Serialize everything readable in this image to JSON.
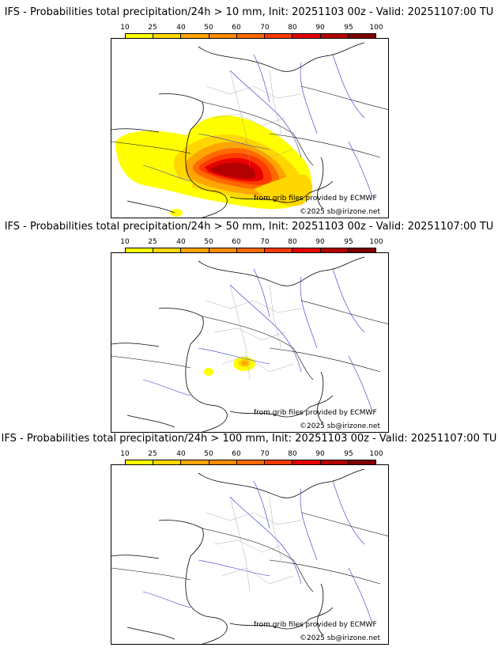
{
  "legend": {
    "ticks": [
      "10",
      "25",
      "40",
      "50",
      "60",
      "70",
      "80",
      "90",
      "95",
      "100"
    ],
    "colors": [
      "#ffff00",
      "#ffd700",
      "#ffa500",
      "#ff8c00",
      "#ff6a00",
      "#ff3a00",
      "#e60000",
      "#b30000",
      "#800000",
      "#4d0000"
    ]
  },
  "credits": {
    "source": "from grib files provided by ECMWF",
    "copyright": "©2025 sb@irizone.net"
  },
  "panels": [
    {
      "title": "IFS - Probabilities total precipitation/24h > 10 mm, Init: 20251103 00z - Valid: 20251107:00 TU",
      "threshold": "10 mm"
    },
    {
      "title": "IFS - Probabilities total precipitation/24h > 50 mm, Init: 20251103 00z - Valid: 20251107:00 TU",
      "threshold": "50 mm"
    },
    {
      "title": "IFS - Probabilities total precipitation/24h > 100 mm, Init: 20251103 00z - Valid: 20251107:00 TU",
      "threshold": "100 mm"
    }
  ]
}
